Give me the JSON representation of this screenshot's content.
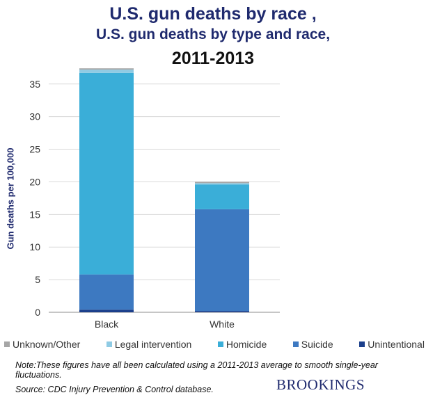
{
  "titles": {
    "line1": "U.S. gun deaths by race ,",
    "line2": "U.S. gun deaths by type and race,",
    "line3": "2011-2013"
  },
  "footer": {
    "note": "Note:These figures have all been calculated using a 2011-2013 average to smooth single-year fluctuations.",
    "source": "Source: CDC Injury Prevention & Control database.",
    "brand": "BROOKINGS"
  },
  "chart_data": {
    "type": "bar",
    "stacked": true,
    "title": "U.S. gun deaths by type and race, 2011-2013",
    "ylabel": "Gun deaths per 100,000",
    "xlabel": "",
    "ylim": [
      0,
      37
    ],
    "yticks": [
      0,
      5,
      10,
      15,
      20,
      25,
      30,
      35
    ],
    "grid": true,
    "legend_position": "bottom",
    "categories": [
      "Black",
      "White"
    ],
    "series": [
      {
        "name": "Unintentional",
        "values": [
          0.4,
          0.2
        ],
        "color": "#1b3f8b"
      },
      {
        "name": "Suicide",
        "values": [
          5.4,
          15.6
        ],
        "color": "#3d79c1"
      },
      {
        "name": "Homicide",
        "values": [
          30.9,
          3.8
        ],
        "color": "#3aaed8"
      },
      {
        "name": "Legal intervention",
        "values": [
          0.5,
          0.2
        ],
        "color": "#8fcbe4"
      },
      {
        "name": "Unknown/Other",
        "values": [
          0.2,
          0.2
        ],
        "color": "#a6a6a6"
      }
    ],
    "legend_order": [
      "Unknown/Other",
      "Legal intervention",
      "Homicide",
      "Suicide",
      "Unintentional"
    ]
  }
}
